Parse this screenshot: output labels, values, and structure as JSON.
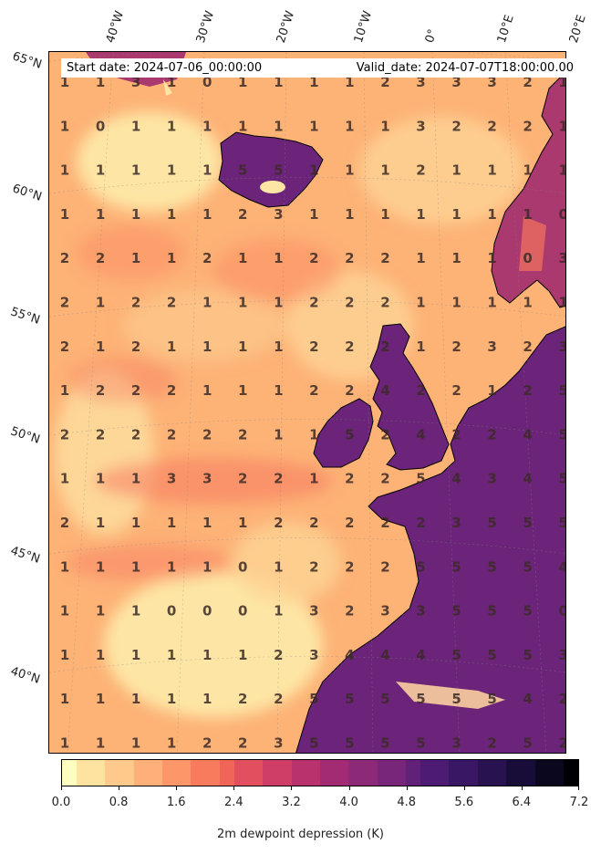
{
  "header": {
    "start_date": "Start date: 2024-07-06_00:00:00",
    "valid_date": "Valid_date: 2024-07-07T18:00:00.00"
  },
  "map": {
    "latitude_labels": [
      "65°N",
      "60°N",
      "55°N",
      "50°N",
      "45°N",
      "40°N"
    ],
    "longitude_labels": [
      "40°W",
      "30°W",
      "20°W",
      "10°W",
      "0°",
      "10°E",
      "20°E"
    ],
    "value_grid": [
      [
        "1",
        "1",
        "3",
        "1",
        "0",
        "1",
        "1",
        "1",
        "1",
        "2",
        "3",
        "3",
        "3",
        "2",
        "1"
      ],
      [
        "1",
        "0",
        "1",
        "1",
        "1",
        "1",
        "1",
        "1",
        "1",
        "1",
        "3",
        "2",
        "2",
        "2",
        "1"
      ],
      [
        "1",
        "1",
        "1",
        "1",
        "1",
        "5",
        "5",
        "1",
        "1",
        "1",
        "2",
        "1",
        "1",
        "1",
        "1"
      ],
      [
        "1",
        "1",
        "1",
        "1",
        "1",
        "2",
        "3",
        "1",
        "1",
        "1",
        "1",
        "1",
        "1",
        "1",
        "0"
      ],
      [
        "2",
        "2",
        "1",
        "1",
        "2",
        "1",
        "1",
        "2",
        "2",
        "2",
        "1",
        "1",
        "1",
        "0",
        "3"
      ],
      [
        "2",
        "1",
        "2",
        "2",
        "1",
        "1",
        "1",
        "2",
        "2",
        "2",
        "1",
        "1",
        "1",
        "1",
        "1"
      ],
      [
        "2",
        "1",
        "2",
        "1",
        "1",
        "1",
        "1",
        "2",
        "2",
        "2",
        "1",
        "2",
        "3",
        "2",
        "3"
      ],
      [
        "1",
        "2",
        "2",
        "2",
        "1",
        "1",
        "1",
        "2",
        "2",
        "4",
        "2",
        "2",
        "1",
        "2",
        "5"
      ],
      [
        "2",
        "2",
        "2",
        "2",
        "2",
        "2",
        "1",
        "1",
        "5",
        "2",
        "4",
        "2",
        "2",
        "4",
        "5"
      ],
      [
        "1",
        "1",
        "1",
        "3",
        "3",
        "2",
        "2",
        "1",
        "2",
        "2",
        "5",
        "4",
        "3",
        "4",
        "5"
      ],
      [
        "2",
        "1",
        "1",
        "1",
        "1",
        "1",
        "2",
        "2",
        "2",
        "2",
        "2",
        "3",
        "5",
        "5",
        "5"
      ],
      [
        "1",
        "1",
        "1",
        "1",
        "1",
        "0",
        "1",
        "2",
        "2",
        "2",
        "5",
        "5",
        "5",
        "5",
        "4"
      ],
      [
        "1",
        "1",
        "1",
        "0",
        "0",
        "0",
        "1",
        "3",
        "2",
        "3",
        "3",
        "5",
        "5",
        "5",
        "0"
      ],
      [
        "1",
        "1",
        "1",
        "1",
        "1",
        "1",
        "2",
        "3",
        "4",
        "4",
        "4",
        "5",
        "5",
        "5",
        "3"
      ],
      [
        "1",
        "1",
        "1",
        "1",
        "1",
        "2",
        "2",
        "5",
        "5",
        "5",
        "5",
        "5",
        "5",
        "4",
        "2"
      ],
      [
        "1",
        "1",
        "1",
        "1",
        "2",
        "2",
        "3",
        "5",
        "5",
        "5",
        "5",
        "3",
        "2",
        "5",
        "2"
      ]
    ],
    "colors": {
      "ocean_base": "#fdb276",
      "ocean_low": "#fde6a5",
      "ocean_mid": "#fb8861",
      "land_high": "#6b2479",
      "land_mid": "#a9396e",
      "coastline": "#000000",
      "value_text": "#3b2a26"
    }
  },
  "colorbar": {
    "title": "2m dewpoint depression (K)",
    "tick_labels": [
      "0.0",
      "0.8",
      "1.6",
      "2.4",
      "3.2",
      "4.0",
      "4.8",
      "5.6",
      "6.4",
      "7.2"
    ],
    "colormap": "magma_r"
  }
}
